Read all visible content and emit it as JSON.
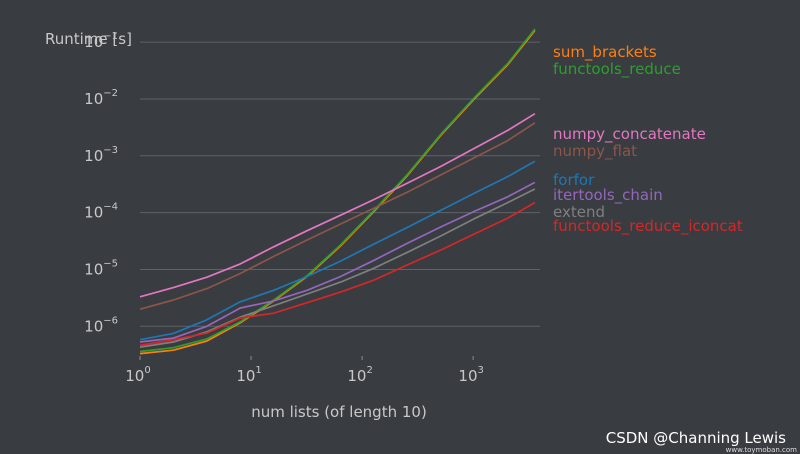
{
  "chart_data": {
    "type": "line",
    "xscale": "log",
    "yscale": "log",
    "xlim": [
      1,
      4000
    ],
    "ylim": [
      3e-07,
      0.2
    ],
    "xlabel": "num lists (of length 10)",
    "ylabel": "Runtime [s]",
    "grid": "horizontal",
    "legend_placement": "right",
    "xticks": [
      {
        "value": 1,
        "base": "10",
        "exp": "0"
      },
      {
        "value": 10,
        "base": "10",
        "exp": "1"
      },
      {
        "value": 100,
        "base": "10",
        "exp": "2"
      },
      {
        "value": 1000,
        "base": "10",
        "exp": "3"
      }
    ],
    "yticks": [
      {
        "value": 1e-06,
        "base": "10",
        "exp": "−6"
      },
      {
        "value": 1e-05,
        "base": "10",
        "exp": "−5"
      },
      {
        "value": 0.0001,
        "base": "10",
        "exp": "−4"
      },
      {
        "value": 0.001,
        "base": "10",
        "exp": "−3"
      },
      {
        "value": 0.01,
        "base": "10",
        "exp": "−2"
      },
      {
        "value": 0.1,
        "base": "10",
        "exp": "−1"
      }
    ],
    "x": [
      1,
      2,
      4,
      8,
      16,
      32,
      64,
      128,
      256,
      512,
      1024,
      2048,
      3600
    ],
    "series": [
      {
        "name": "sum_brackets",
        "color": "#ff7f0e",
        "values": [
          3.3e-07,
          3.8e-07,
          5.5e-07,
          1.15e-06,
          2.8e-06,
          7.5e-06,
          2.6e-05,
          0.000105,
          0.00045,
          0.0023,
          0.01,
          0.04,
          0.16
        ]
      },
      {
        "name": "functools_reduce",
        "color": "#2ca02c",
        "values": [
          3.6e-07,
          4.2e-07,
          6e-07,
          1.2e-06,
          2.9e-06,
          7.8e-06,
          2.7e-05,
          0.00011,
          0.00047,
          0.0024,
          0.0105,
          0.042,
          0.17
        ]
      },
      {
        "name": "numpy_concatenate",
        "color": "#e377c2",
        "values": [
          3.3e-06,
          4.8e-06,
          7.3e-06,
          1.25e-05,
          2.5e-05,
          4.8e-05,
          9e-05,
          0.00017,
          0.00033,
          0.00065,
          0.00135,
          0.0028,
          0.0055
        ]
      },
      {
        "name": "numpy_flat",
        "color": "#8c564b",
        "values": [
          2e-06,
          2.9e-06,
          4.6e-06,
          8.5e-06,
          1.7e-05,
          3.3e-05,
          6.3e-05,
          0.00012,
          0.00023,
          0.00046,
          0.00092,
          0.00185,
          0.0038
        ]
      },
      {
        "name": "forfor",
        "color": "#1f77b4",
        "values": [
          5.8e-07,
          7.5e-07,
          1.3e-06,
          2.7e-06,
          4.3e-06,
          7.5e-06,
          1.4e-05,
          2.8e-05,
          5.5e-05,
          0.00011,
          0.00022,
          0.00043,
          0.0008
        ]
      },
      {
        "name": "itertools_chain",
        "color": "#9467bd",
        "values": [
          5.3e-07,
          6.2e-07,
          1e-06,
          2.1e-06,
          2.8e-06,
          4.3e-06,
          7.5e-06,
          1.45e-05,
          2.9e-05,
          5.6e-05,
          0.000105,
          0.00019,
          0.00034
        ]
      },
      {
        "name": "extend",
        "color": "#7f7f7f",
        "values": [
          4.3e-07,
          5.3e-07,
          8e-07,
          1.45e-06,
          2.3e-06,
          3.7e-06,
          6e-06,
          1.05e-05,
          2e-05,
          3.9e-05,
          7.8e-05,
          0.00015,
          0.00026
        ]
      },
      {
        "name": "functools_reduce_iconcat",
        "color": "#d62728",
        "values": [
          4.6e-07,
          5.8e-07,
          7.6e-07,
          1.4e-06,
          1.7e-06,
          2.6e-06,
          4e-06,
          6.5e-06,
          1.2e-05,
          2.2e-05,
          4.2e-05,
          8e-05,
          0.00015
        ]
      }
    ]
  },
  "watermark": "CSDN @Channing Lewis",
  "watermark_small": "www.toymoban.com"
}
